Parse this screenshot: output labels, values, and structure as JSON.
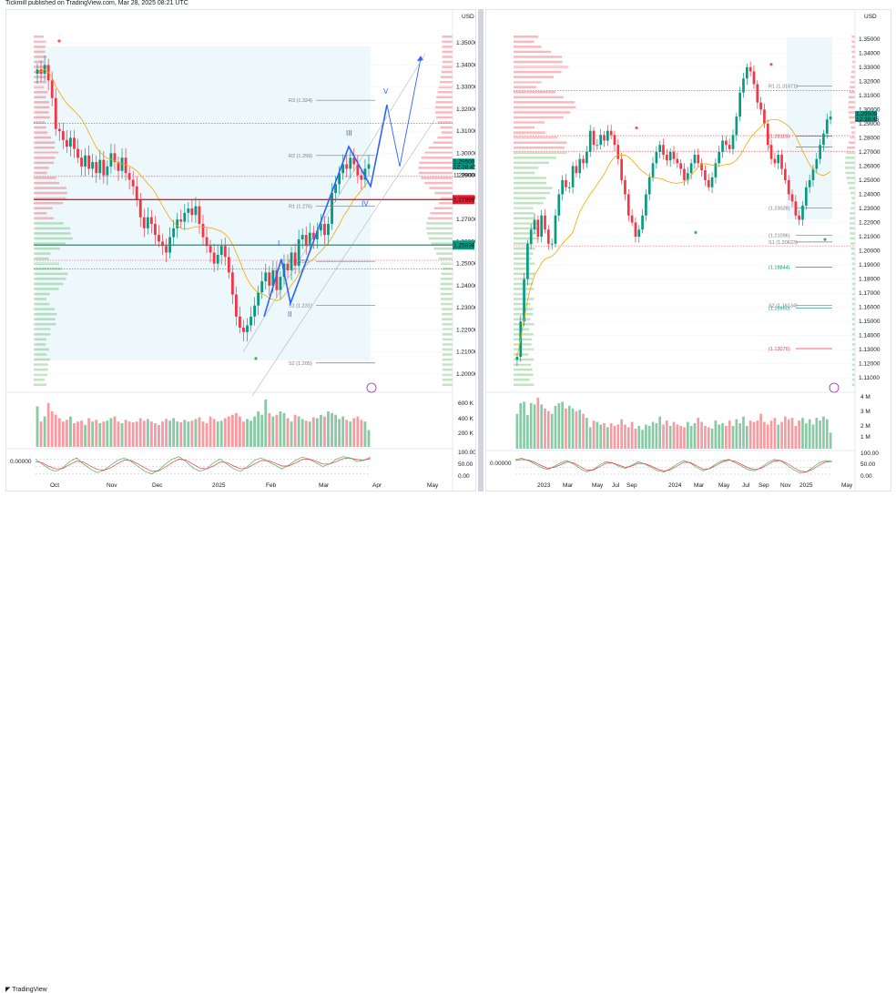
{
  "header": {
    "published": "Tickmill published on TradingView.com, Mar 28, 2025 08:21 UTC"
  },
  "footer": {
    "brand": "TradingView"
  },
  "chart_data": [
    {
      "type": "line",
      "currency": "USD",
      "ylim": [
        1.195,
        1.355
      ],
      "y_ticks": [
        "1.35000",
        "1.34000",
        "1.33000",
        "1.32000",
        "1.31000",
        "1.30000",
        "1.29000",
        "1.28000",
        "1.27000",
        "1.26000",
        "1.25000",
        "1.24000",
        "1.23000",
        "1.22000",
        "1.21000",
        "1.20000"
      ],
      "x_ticks": [
        "Oct",
        "Nov",
        "Dec",
        "2025",
        "Feb",
        "Mar",
        "Apr",
        "May"
      ],
      "price_labels": {
        "last": "1.29509",
        "countdown": "12:38:45",
        "hi": "1.29000",
        "green_line": "1.25838",
        "red_line": "1.27899"
      },
      "pivots": [
        {
          "label": "R3 (1.324)",
          "value": 1.324
        },
        {
          "label": "R2 (1.299)",
          "value": 1.299
        },
        {
          "label": "R1 (1.276)",
          "value": 1.276
        },
        {
          "label": "P (1.251)",
          "value": 1.251
        },
        {
          "label": "S1 (1.231)",
          "value": 1.231
        },
        {
          "label": "S2 (1.205)",
          "value": 1.205
        }
      ],
      "waves": [
        "I",
        "II",
        "III",
        "IV",
        "V"
      ],
      "volume_ticks": [
        "600 K",
        "400 K",
        "200 K"
      ],
      "osc_ticks": [
        "100.00",
        "50.00",
        "0.00"
      ],
      "osc_left_label": "0.00000",
      "close": [
        1.338,
        1.336,
        1.34,
        1.333,
        1.325,
        1.311,
        1.31,
        1.306,
        1.303,
        1.307,
        1.302,
        1.298,
        1.294,
        1.299,
        1.293,
        1.296,
        1.291,
        1.297,
        1.29,
        1.294,
        1.3,
        1.296,
        1.292,
        1.298,
        1.291,
        1.288,
        1.285,
        1.279,
        1.271,
        1.266,
        1.271,
        1.268,
        1.263,
        1.26,
        1.258,
        1.255,
        1.262,
        1.266,
        1.27,
        1.269,
        1.273,
        1.275,
        1.272,
        1.276,
        1.268,
        1.262,
        1.258,
        1.255,
        1.25,
        1.254,
        1.258,
        1.253,
        1.246,
        1.236,
        1.226,
        1.221,
        1.219,
        1.222,
        1.226,
        1.231,
        1.237,
        1.242,
        1.246,
        1.24,
        1.247,
        1.238,
        1.244,
        1.25,
        1.247,
        1.255,
        1.249,
        1.261,
        1.263,
        1.258,
        1.264,
        1.261,
        1.265,
        1.268,
        1.263,
        1.268,
        1.282,
        1.286,
        1.291,
        1.295,
        1.293,
        1.298,
        1.295,
        1.29,
        1.288,
        1.293,
        1.295
      ],
      "volume": [
        480,
        300,
        360,
        520,
        420,
        380,
        340,
        300,
        320,
        360,
        280,
        300,
        310,
        260,
        340,
        300,
        320,
        280,
        300,
        310,
        340,
        360,
        300,
        280,
        320,
        300,
        290,
        300,
        340,
        310,
        330,
        300,
        280,
        260,
        300,
        330,
        310,
        340,
        300,
        290,
        320,
        300,
        310,
        330,
        350,
        300,
        280,
        360,
        330,
        300,
        310,
        340,
        360,
        380,
        400,
        360,
        300,
        330,
        310,
        360,
        420,
        380,
        560,
        400,
        360,
        380,
        420,
        400,
        340,
        300,
        380,
        360,
        330,
        310,
        300,
        350,
        340,
        380,
        360,
        420,
        400,
        380,
        330,
        360,
        320,
        300,
        340,
        360,
        320,
        300,
        200
      ],
      "oscillator": {
        "k": [
          80,
          60,
          40,
          30,
          45,
          70,
          85,
          60,
          40,
          25,
          35,
          55,
          75,
          85,
          70,
          50,
          30,
          20,
          35,
          60,
          80,
          90,
          70,
          45,
          30,
          40,
          65,
          80,
          60,
          40,
          30,
          50,
          75,
          85,
          70,
          55,
          40,
          55,
          75,
          88,
          80,
          65,
          50,
          60,
          80,
          90,
          85,
          70,
          75,
          88
        ],
        "d": [
          70,
          65,
          50,
          40,
          42,
          58,
          72,
          68,
          52,
          38,
          35,
          45,
          62,
          76,
          74,
          60,
          44,
          30,
          32,
          48,
          66,
          80,
          76,
          60,
          44,
          40,
          52,
          68,
          66,
          52,
          40,
          44,
          60,
          74,
          74,
          64,
          52,
          52,
          64,
          78,
          80,
          72,
          60,
          60,
          70,
          82,
          84,
          78,
          76,
          82
        ]
      }
    },
    {
      "type": "line",
      "currency": "USD",
      "ylim": [
        1.105,
        1.355
      ],
      "y_ticks": [
        "1.35000",
        "1.34000",
        "1.33000",
        "1.32000",
        "1.31000",
        "1.30000",
        "1.29000",
        "1.28000",
        "1.27000",
        "1.26000",
        "1.25000",
        "1.24000",
        "1.23000",
        "1.22000",
        "1.21000",
        "1.20000",
        "1.19000",
        "1.18000",
        "1.17000",
        "1.16000",
        "1.15000",
        "1.14000",
        "1.13000",
        "1.12000",
        "1.11000"
      ],
      "x_ticks": [
        "2023",
        "Mar",
        "May",
        "Jul",
        "Sep",
        "2024",
        "Mar",
        "May",
        "Jul",
        "Sep",
        "Nov",
        "2025",
        "May"
      ],
      "price_labels": {
        "last": "1.29509",
        "countdown": "12:38:45"
      },
      "pivots": [
        {
          "label": "R1 (1.31671)",
          "value": 1.31671
        },
        {
          "label": "(1.28115)",
          "value": 1.28115
        },
        {
          "label": "P",
          "value": 1.2735
        },
        {
          "label": "(1.23028)",
          "value": 1.23028
        },
        {
          "label": "(1.21096)",
          "value": 1.21096
        },
        {
          "label": "S1 (1.20623)",
          "value": 1.20623
        },
        {
          "label": "(1.18844)",
          "value": 1.18844
        },
        {
          "label": "S2 (1.16134)",
          "value": 1.16134
        },
        {
          "label": "(1.15950)",
          "value": 1.1595
        },
        {
          "label": "(1.13076)",
          "value": 1.13076
        }
      ],
      "volume_ticks": [
        "4 M",
        "3 M",
        "2 M",
        "1 M"
      ],
      "osc_ticks": [
        "100.00",
        "50.00",
        "0.00"
      ],
      "osc_left_label": "0.00000",
      "close": [
        1.125,
        1.15,
        1.18,
        1.205,
        1.215,
        1.222,
        1.21,
        1.225,
        1.215,
        1.205,
        1.205,
        1.225,
        1.24,
        1.25,
        1.245,
        1.245,
        1.26,
        1.255,
        1.265,
        1.262,
        1.27,
        1.285,
        1.275,
        1.275,
        1.282,
        1.278,
        1.285,
        1.282,
        1.275,
        1.265,
        1.25,
        1.24,
        1.225,
        1.22,
        1.21,
        1.215,
        1.225,
        1.24,
        1.252,
        1.262,
        1.27,
        1.275,
        1.268,
        1.264,
        1.27,
        1.265,
        1.262,
        1.258,
        1.25,
        1.255,
        1.262,
        1.268,
        1.262,
        1.257,
        1.25,
        1.245,
        1.252,
        1.262,
        1.27,
        1.278,
        1.275,
        1.272,
        1.282,
        1.295,
        1.312,
        1.322,
        1.33,
        1.327,
        1.318,
        1.305,
        1.3,
        1.29,
        1.275,
        1.265,
        1.262,
        1.268,
        1.258,
        1.25,
        1.24,
        1.235,
        1.225,
        1.222,
        1.232,
        1.245,
        1.25,
        1.258,
        1.265,
        1.275,
        1.283,
        1.293,
        1.295
      ],
      "volume": [
        2.6,
        3.4,
        3.5,
        2.5,
        3.4,
        3.3,
        3.8,
        3.3,
        3.0,
        2.8,
        2.6,
        3.2,
        3.4,
        3.5,
        3.0,
        3.2,
        3.0,
        2.8,
        2.9,
        2.6,
        2.3,
        1.6,
        2.1,
        2.0,
        1.8,
        1.9,
        1.6,
        1.9,
        1.7,
        1.8,
        2.2,
        1.8,
        1.6,
        2.0,
        1.5,
        1.7,
        1.4,
        1.8,
        1.7,
        2.0,
        1.9,
        2.4,
        1.8,
        2.1,
        1.7,
        2.0,
        1.8,
        1.7,
        1.6,
        2.0,
        1.7,
        1.9,
        2.3,
        2.0,
        1.7,
        1.6,
        1.5,
        2.1,
        1.8,
        1.9,
        1.7,
        2.1,
        1.7,
        2.2,
        1.9,
        2.4,
        1.7,
        2.1,
        2.0,
        2.1,
        2.6,
        2.0,
        1.8,
        2.1,
        2.3,
        1.8,
        2.0,
        2.4,
        2.2,
        2.3,
        1.7,
        2.1,
        2.3,
        1.9,
        2.2,
        1.8,
        2.3,
        2.1,
        2.4,
        2.2,
        1.2
      ],
      "oscillator": {
        "k": [
          85,
          90,
          80,
          65,
          50,
          40,
          55,
          70,
          80,
          65,
          45,
          30,
          40,
          60,
          75,
          70,
          55,
          45,
          60,
          75,
          65,
          50,
          35,
          30,
          45,
          65,
          80,
          70,
          50,
          35,
          45,
          65,
          80,
          85,
          70,
          55,
          40,
          35,
          50,
          70,
          85,
          80,
          60,
          40,
          25,
          30,
          50,
          70,
          80,
          75
        ],
        "d": [
          80,
          85,
          82,
          72,
          58,
          46,
          50,
          62,
          74,
          70,
          54,
          38,
          38,
          52,
          68,
          70,
          60,
          50,
          56,
          68,
          66,
          56,
          42,
          34,
          40,
          56,
          72,
          72,
          58,
          42,
          44,
          58,
          74,
          82,
          76,
          62,
          48,
          40,
          46,
          62,
          78,
          80,
          68,
          50,
          34,
          30,
          42,
          60,
          74,
          76
        ]
      }
    }
  ]
}
